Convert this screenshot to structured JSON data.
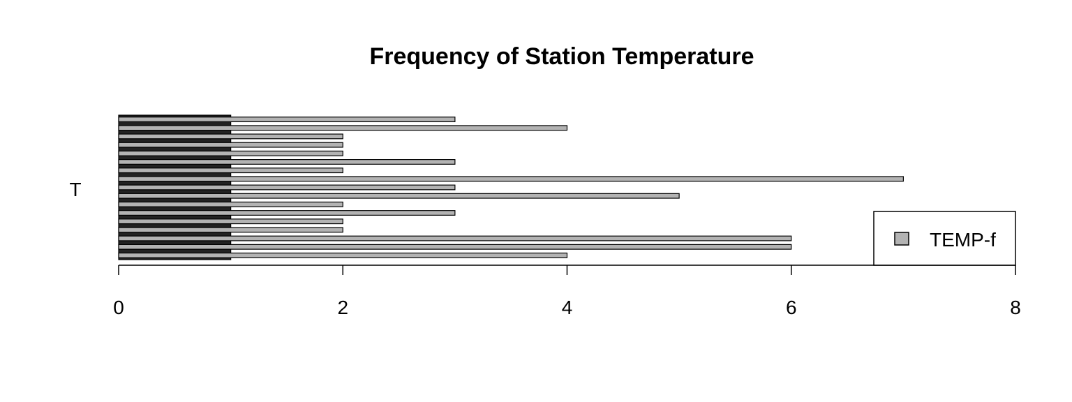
{
  "chart_data": {
    "type": "bar",
    "orientation": "horizontal",
    "title": "Frequency of Station Temperature",
    "xlabel": "",
    "ylabel": "",
    "group_label": "T",
    "xlim": [
      0,
      8
    ],
    "x_ticks": [
      "0",
      "2",
      "4",
      "6",
      "8"
    ],
    "grid": false,
    "legend": {
      "position": "bottom-right",
      "entries": [
        "TEMP-f"
      ]
    },
    "series": [
      {
        "name": "TEMP-f",
        "color": "#b3b3b3",
        "values": [
          4,
          6,
          6,
          2,
          2,
          3,
          2,
          5,
          3,
          7,
          2,
          3,
          2,
          2,
          2,
          4,
          3
        ]
      }
    ]
  }
}
